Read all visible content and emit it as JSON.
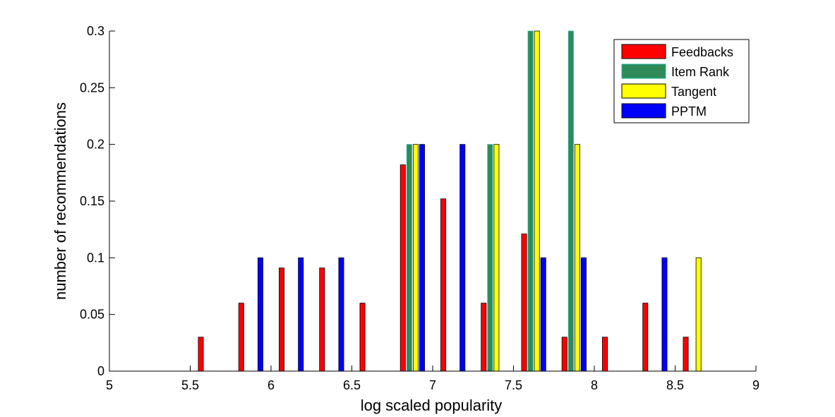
{
  "chart_data": {
    "type": "bar",
    "title": "",
    "xlabel": "log scaled popularity",
    "ylabel": "number of recommendations",
    "xlim": [
      5,
      9
    ],
    "ylim": [
      0,
      0.3
    ],
    "xticks": [
      "5",
      "5.5",
      "6",
      "6.5",
      "7",
      "7.5",
      "8",
      "8.5",
      "9"
    ],
    "yticks": [
      "0",
      "0.05",
      "0.1",
      "0.15",
      "0.2",
      "0.25",
      "0.3"
    ],
    "grid": false,
    "legend_position": "top-right",
    "bin_centers": [
      5.125,
      5.375,
      5.625,
      5.875,
      6.125,
      6.375,
      6.625,
      6.875,
      7.125,
      7.375,
      7.625,
      7.875,
      8.125,
      8.375,
      8.625,
      8.875
    ],
    "series": [
      {
        "name": "Feedbacks",
        "color": "#ff0000",
        "values": [
          0,
          0,
          0.03,
          0.06,
          0.091,
          0.091,
          0.06,
          0.182,
          0.152,
          0.06,
          0.121,
          0.03,
          0.03,
          0.06,
          0.03,
          0
        ]
      },
      {
        "name": "Item Rank",
        "color": "#2e8b57",
        "values": [
          0,
          0,
          0,
          0,
          0,
          0,
          0,
          0.2,
          0,
          0.2,
          0.3,
          0.3,
          0,
          0,
          0,
          0
        ]
      },
      {
        "name": "Tangent",
        "color": "#ffff00",
        "values": [
          0,
          0,
          0,
          0,
          0,
          0,
          0,
          0.2,
          0,
          0.2,
          0.3,
          0.2,
          0,
          0,
          0.1,
          0
        ]
      },
      {
        "name": "PPTM",
        "color": "#0000ff",
        "values": [
          0,
          0,
          0,
          0.1,
          0.1,
          0.1,
          0,
          0.2,
          0.2,
          0,
          0.1,
          0.1,
          0,
          0.1,
          0,
          0
        ]
      }
    ]
  }
}
